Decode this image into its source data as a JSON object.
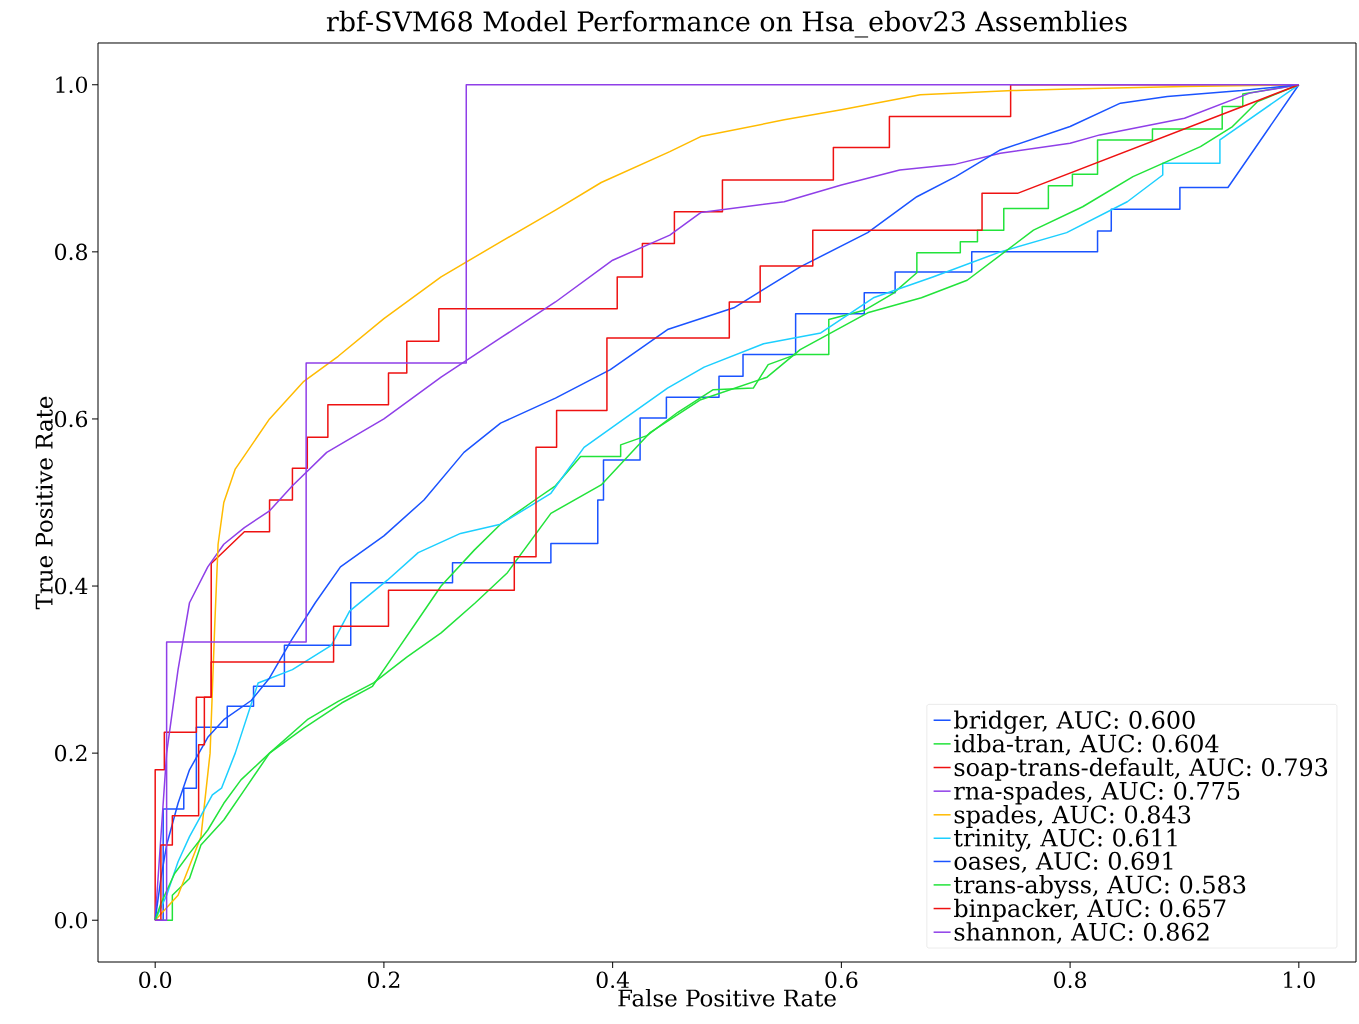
{
  "chart_data": {
    "type": "line",
    "title": "rbf-SVM68 Model Performance on Hsa_ebov23 Assemblies",
    "xlabel": "False Positive Rate",
    "ylabel": "True Positive Rate",
    "xlim": [
      -0.05,
      1.05
    ],
    "ylim": [
      -0.05,
      1.05
    ],
    "xticks": [
      {
        "value": 0,
        "label": "0.0"
      },
      {
        "value": 0.2,
        "label": "0.2"
      },
      {
        "value": 0.4,
        "label": "0.4"
      },
      {
        "value": 0.6,
        "label": "0.6"
      },
      {
        "value": 0.8,
        "label": "0.8"
      },
      {
        "value": 1,
        "label": "1.0"
      }
    ],
    "yticks": [
      {
        "value": 0,
        "label": "0.0"
      },
      {
        "value": 0.2,
        "label": "0.2"
      },
      {
        "value": 0.4,
        "label": "0.4"
      },
      {
        "value": 0.6,
        "label": "0.6"
      },
      {
        "value": 0.8,
        "label": "0.8"
      },
      {
        "value": 1,
        "label": "1.0"
      }
    ],
    "legend": "bottom right",
    "series": [
      {
        "name": "bridger, AUC: 0.600",
        "color": "#1a53ff",
        "x": [
          0,
          0.007,
          0.007,
          0.025,
          0.025,
          0.036,
          0.036,
          0.063,
          0.063,
          0.086,
          0.086,
          0.113,
          0.113,
          0.171,
          0.171,
          0.26,
          0.26,
          0.346,
          0.346,
          0.387,
          0.387,
          0.392,
          0.392,
          0.424,
          0.424,
          0.447,
          0.447,
          0.493,
          0.493,
          0.514,
          0.514,
          0.56,
          0.56,
          0.62,
          0.62,
          0.647,
          0.647,
          0.714,
          0.714,
          0.824,
          0.824,
          0.836,
          0.836,
          0.896,
          0.896,
          0.938,
          1
        ],
        "values": [
          0,
          0,
          0.133,
          0.133,
          0.158,
          0.158,
          0.231,
          0.231,
          0.256,
          0.256,
          0.28,
          0.28,
          0.329,
          0.329,
          0.404,
          0.404,
          0.428,
          0.428,
          0.451,
          0.451,
          0.503,
          0.503,
          0.551,
          0.551,
          0.601,
          0.601,
          0.626,
          0.626,
          0.651,
          0.651,
          0.677,
          0.677,
          0.726,
          0.726,
          0.751,
          0.751,
          0.776,
          0.776,
          0.8,
          0.8,
          0.825,
          0.825,
          0.851,
          0.851,
          0.877,
          0.877,
          1
        ]
      },
      {
        "name": "idba-tran, AUC: 0.604",
        "color": "#22e33a",
        "x": [
          0,
          0.015,
          0.015,
          0.03,
          0.04,
          0.06,
          0.08,
          0.1,
          0.13,
          0.163,
          0.19,
          0.21,
          0.23,
          0.25,
          0.279,
          0.302,
          0.332,
          0.35,
          0.372,
          0.407,
          0.407,
          0.43,
          0.457,
          0.488,
          0.523,
          0.536,
          0.56,
          0.589,
          0.589,
          0.62,
          0.645,
          0.666,
          0.666,
          0.704,
          0.704,
          0.719,
          0.719,
          0.742,
          0.742,
          0.781,
          0.781,
          0.802,
          0.802,
          0.824,
          0.824,
          0.872,
          0.872,
          0.933,
          0.933,
          0.951,
          0.951,
          1
        ],
        "values": [
          0,
          0,
          0.03,
          0.05,
          0.09,
          0.12,
          0.16,
          0.2,
          0.23,
          0.26,
          0.28,
          0.32,
          0.36,
          0.4,
          0.443,
          0.474,
          0.503,
          0.52,
          0.555,
          0.555,
          0.569,
          0.58,
          0.608,
          0.635,
          0.637,
          0.665,
          0.677,
          0.677,
          0.719,
          0.73,
          0.75,
          0.775,
          0.799,
          0.799,
          0.812,
          0.812,
          0.826,
          0.826,
          0.852,
          0.852,
          0.879,
          0.879,
          0.893,
          0.893,
          0.934,
          0.934,
          0.947,
          0.947,
          0.974,
          0.974,
          0.989,
          1
        ]
      },
      {
        "name": "soap-trans-default, AUC: 0.793",
        "color": "#ee1111",
        "x": [
          0,
          0,
          0.008,
          0.008,
          0.036,
          0.036,
          0.049,
          0.049,
          0.078,
          0.1,
          0.1,
          0.12,
          0.12,
          0.133,
          0.133,
          0.151,
          0.151,
          0.204,
          0.204,
          0.22,
          0.22,
          0.248,
          0.248,
          0.404,
          0.404,
          0.426,
          0.426,
          0.454,
          0.454,
          0.496,
          0.496,
          0.593,
          0.593,
          0.642,
          0.642,
          0.748,
          0.748,
          1
        ],
        "values": [
          0,
          0.18,
          0.18,
          0.225,
          0.225,
          0.267,
          0.267,
          0.427,
          0.465,
          0.465,
          0.503,
          0.503,
          0.541,
          0.541,
          0.578,
          0.578,
          0.617,
          0.617,
          0.655,
          0.655,
          0.693,
          0.693,
          0.732,
          0.732,
          0.77,
          0.77,
          0.81,
          0.81,
          0.848,
          0.848,
          0.886,
          0.886,
          0.925,
          0.925,
          0.962,
          0.962,
          1,
          1
        ]
      },
      {
        "name": "rna-spades, AUC: 0.775",
        "color": "#8f3fe8",
        "x": [
          0,
          0.005,
          0.01,
          0.02,
          0.03,
          0.046,
          0.06,
          0.078,
          0.1,
          0.12,
          0.15,
          0.2,
          0.25,
          0.302,
          0.35,
          0.4,
          0.45,
          0.477,
          0.55,
          0.6,
          0.651,
          0.7,
          0.739,
          0.8,
          0.826,
          0.9,
          0.957,
          1
        ],
        "values": [
          0,
          0.1,
          0.2,
          0.3,
          0.38,
          0.423,
          0.45,
          0.47,
          0.49,
          0.52,
          0.56,
          0.6,
          0.65,
          0.697,
          0.74,
          0.79,
          0.82,
          0.847,
          0.86,
          0.88,
          0.898,
          0.905,
          0.918,
          0.93,
          0.94,
          0.96,
          0.99,
          1
        ]
      },
      {
        "name": "spades, AUC: 0.843",
        "color": "#ffbb00",
        "x": [
          0,
          0.02,
          0.04,
          0.048,
          0.052,
          0.055,
          0.06,
          0.07,
          0.1,
          0.13,
          0.16,
          0.2,
          0.25,
          0.302,
          0.35,
          0.39,
          0.45,
          0.477,
          0.55,
          0.6,
          0.669,
          0.75,
          0.8,
          0.9,
          1
        ],
        "values": [
          0,
          0.03,
          0.1,
          0.2,
          0.35,
          0.45,
          0.5,
          0.54,
          0.6,
          0.645,
          0.675,
          0.72,
          0.77,
          0.812,
          0.85,
          0.883,
          0.92,
          0.938,
          0.958,
          0.97,
          0.988,
          0.993,
          0.995,
          0.998,
          1
        ]
      },
      {
        "name": "trinity, AUC: 0.611",
        "color": "#1ccfff",
        "x": [
          0,
          0.01,
          0.02,
          0.03,
          0.05,
          0.058,
          0.07,
          0.09,
          0.12,
          0.154,
          0.17,
          0.203,
          0.23,
          0.267,
          0.302,
          0.346,
          0.375,
          0.41,
          0.448,
          0.48,
          0.532,
          0.582,
          0.628,
          0.68,
          0.739,
          0.797,
          0.85,
          0.881,
          0.881,
          0.931,
          0.931,
          1
        ],
        "values": [
          0,
          0.03,
          0.07,
          0.1,
          0.15,
          0.158,
          0.2,
          0.284,
          0.3,
          0.329,
          0.37,
          0.407,
          0.44,
          0.463,
          0.474,
          0.511,
          0.566,
          0.6,
          0.637,
          0.662,
          0.69,
          0.703,
          0.745,
          0.77,
          0.8,
          0.823,
          0.86,
          0.892,
          0.906,
          0.906,
          0.934,
          1
        ]
      },
      {
        "name": "oases, AUC: 0.691",
        "color": "#1a53ff",
        "x": [
          0,
          0.005,
          0.01,
          0.02,
          0.03,
          0.046,
          0.06,
          0.084,
          0.1,
          0.119,
          0.14,
          0.162,
          0.2,
          0.235,
          0.27,
          0.302,
          0.35,
          0.398,
          0.448,
          0.506,
          0.564,
          0.623,
          0.666,
          0.7,
          0.739,
          0.8,
          0.844,
          0.885,
          0.95,
          1
        ],
        "values": [
          0,
          0.05,
          0.09,
          0.14,
          0.18,
          0.219,
          0.24,
          0.263,
          0.29,
          0.335,
          0.38,
          0.423,
          0.46,
          0.503,
          0.56,
          0.595,
          0.625,
          0.659,
          0.707,
          0.733,
          0.782,
          0.823,
          0.866,
          0.89,
          0.922,
          0.95,
          0.978,
          0.986,
          0.993,
          1
        ]
      },
      {
        "name": "trans-abyss, AUC: 0.583",
        "color": "#22e33a",
        "x": [
          0,
          0.005,
          0.01,
          0.017,
          0.03,
          0.046,
          0.06,
          0.075,
          0.1,
          0.133,
          0.16,
          0.191,
          0.22,
          0.25,
          0.28,
          0.308,
          0.346,
          0.39,
          0.433,
          0.477,
          0.535,
          0.564,
          0.623,
          0.67,
          0.71,
          0.768,
          0.811,
          0.855,
          0.914,
          0.942,
          0.964,
          1
        ],
        "values": [
          0,
          0.02,
          0.035,
          0.056,
          0.08,
          0.108,
          0.14,
          0.168,
          0.2,
          0.24,
          0.262,
          0.284,
          0.315,
          0.344,
          0.38,
          0.416,
          0.487,
          0.521,
          0.584,
          0.623,
          0.65,
          0.683,
          0.727,
          0.745,
          0.766,
          0.826,
          0.854,
          0.89,
          0.926,
          0.95,
          0.98,
          1
        ]
      },
      {
        "name": "binpacker, AUC: 0.657",
        "color": "#ee1111",
        "x": [
          0,
          0.005,
          0.005,
          0.015,
          0.015,
          0.038,
          0.038,
          0.043,
          0.043,
          0.049,
          0.049,
          0.156,
          0.156,
          0.204,
          0.204,
          0.314,
          0.314,
          0.333,
          0.333,
          0.351,
          0.351,
          0.395,
          0.395,
          0.502,
          0.502,
          0.529,
          0.529,
          0.575,
          0.575,
          0.723,
          0.723,
          0.754,
          1
        ],
        "values": [
          0,
          0,
          0.09,
          0.09,
          0.125,
          0.125,
          0.21,
          0.21,
          0.267,
          0.267,
          0.309,
          0.309,
          0.352,
          0.352,
          0.395,
          0.395,
          0.435,
          0.435,
          0.566,
          0.566,
          0.61,
          0.61,
          0.697,
          0.697,
          0.74,
          0.74,
          0.783,
          0.783,
          0.826,
          0.826,
          0.87,
          0.87,
          1
        ]
      },
      {
        "name": "shannon, AUC: 0.862",
        "color": "#8f3fe8",
        "x": [
          0,
          0.01,
          0.01,
          0.132,
          0.132,
          0.272,
          0.272,
          1
        ],
        "values": [
          0,
          0,
          0.333,
          0.333,
          0.667,
          0.667,
          1,
          1
        ]
      }
    ]
  }
}
